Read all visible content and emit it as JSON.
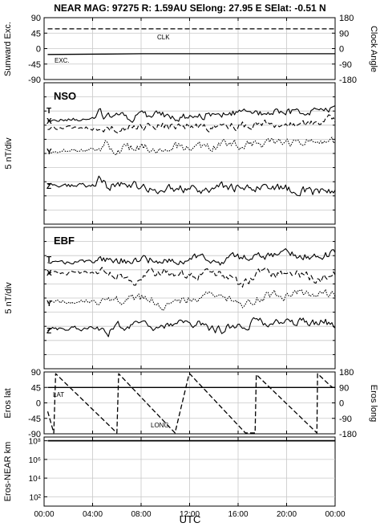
{
  "header": {
    "title": "NEAR MAG: 97275  R: 1.59AU  SElong:   27.95 E  SElat:  -0.51 N"
  },
  "x_axis": {
    "label": "UTC",
    "ticks": [
      "00:00",
      "04:00",
      "08:00",
      "12:00",
      "16:00",
      "20:00",
      "00:00"
    ]
  },
  "chart_data": [
    {
      "type": "line",
      "panel": "sunward-clock",
      "ylabel": "Sunward Exc.",
      "y2label": "Clock Angle",
      "ylim": [
        -90,
        90
      ],
      "y2lim": [
        -180,
        180
      ],
      "yticks": [
        "90",
        "45",
        "0",
        "-45",
        "-90"
      ],
      "y2ticks": [
        "180",
        "90",
        "0",
        "-90",
        "-180"
      ],
      "series": [
        {
          "name": "CLK",
          "style": "dashed",
          "axis": "right",
          "x": [
            0.3,
            24
          ],
          "values": [
            115,
            115
          ]
        },
        {
          "name": "EXC.",
          "style": "solid",
          "axis": "left",
          "x": [
            0.3,
            5,
            8,
            24
          ],
          "values": [
            -17,
            -16,
            -15,
            -15
          ]
        }
      ],
      "grid": true
    },
    {
      "type": "line",
      "panel": "NSO",
      "title": "NSO",
      "ylabel": "5 nT/div",
      "series": [
        {
          "name": "T",
          "style": "solid"
        },
        {
          "name": "X",
          "style": "dashed"
        },
        {
          "name": "Y",
          "style": "dotted"
        },
        {
          "name": "Z",
          "style": "solid"
        }
      ],
      "grid": true
    },
    {
      "type": "line",
      "panel": "EBF",
      "title": "EBF",
      "ylabel": "5 nT/div",
      "series": [
        {
          "name": "T",
          "style": "solid"
        },
        {
          "name": "X",
          "style": "dashed"
        },
        {
          "name": "Y",
          "style": "dotted"
        },
        {
          "name": "Z",
          "style": "solid"
        }
      ],
      "grid": true
    },
    {
      "type": "line",
      "panel": "eros-position",
      "ylabel": "Eros lat",
      "y2label": "Eros long",
      "ylim": [
        -90,
        90
      ],
      "y2lim": [
        -180,
        180
      ],
      "yticks": [
        "90",
        "45",
        "0",
        "-45",
        "-90"
      ],
      "y2ticks": [
        "180",
        "90",
        "0",
        "-90",
        "-180"
      ],
      "series": [
        {
          "name": "LAT",
          "style": "solid",
          "axis": "left",
          "x": [
            0.3,
            24
          ],
          "values": [
            45,
            45
          ]
        },
        {
          "name": "LONG",
          "style": "dashed",
          "axis": "right",
          "x": [
            0.3,
            0.8,
            0.95,
            6.0,
            6.15,
            10.8,
            11.95,
            12.0,
            16.6,
            17.4,
            17.5,
            22.5,
            22.55,
            23.6,
            23.8
          ],
          "values": [
            -50,
            -175,
            170,
            -175,
            170,
            -175,
            165,
            170,
            -175,
            -175,
            165,
            -175,
            170,
            100,
            90
          ]
        }
      ],
      "grid": true
    },
    {
      "type": "line",
      "panel": "eros-near-distance",
      "ylabel": "Eros-NEAR km",
      "yscale": "log",
      "ylim": [
        10,
        100000000
      ],
      "yticks": [
        "10⁸",
        "10⁶",
        "10⁴",
        "10²"
      ],
      "series": [
        {
          "style": "solid",
          "x": [
            0.3,
            24
          ],
          "values": [
            100000000,
            100000000
          ]
        }
      ],
      "grid": true
    }
  ]
}
